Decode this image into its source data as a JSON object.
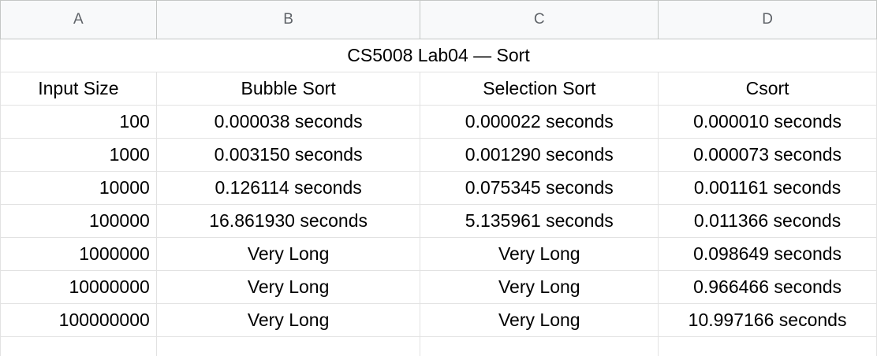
{
  "columns": [
    "A",
    "B",
    "C",
    "D"
  ],
  "title": "CS5008 Lab04 — Sort",
  "headers": [
    "Input Size",
    "Bubble Sort",
    "Selection Sort",
    "Csort"
  ],
  "rows": [
    [
      "100",
      "0.000038 seconds",
      "0.000022 seconds",
      "0.000010 seconds"
    ],
    [
      "1000",
      "0.003150 seconds",
      "0.001290 seconds",
      "0.000073 seconds"
    ],
    [
      "10000",
      "0.126114 seconds",
      "0.075345 seconds",
      "0.001161 seconds"
    ],
    [
      "100000",
      "16.861930 seconds",
      "5.135961 seconds",
      "0.011366 seconds"
    ],
    [
      "1000000",
      "Very Long",
      "Very Long",
      "0.098649 seconds"
    ],
    [
      "10000000",
      "Very Long",
      "Very Long",
      "0.966466 seconds"
    ],
    [
      "100000000",
      "Very Long",
      "Very Long",
      "10.997166 seconds"
    ]
  ]
}
